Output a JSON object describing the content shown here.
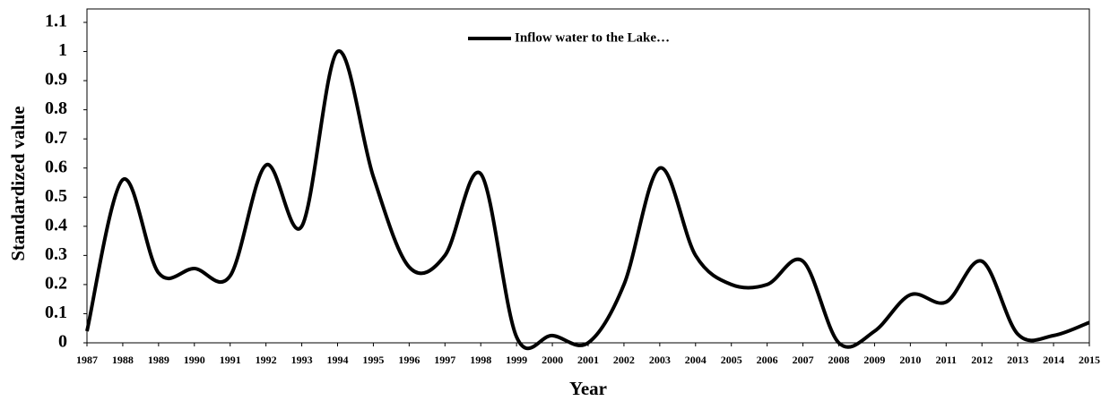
{
  "chart_data": {
    "type": "line",
    "x_label": "Year",
    "y_label": "Standardized value",
    "x": [
      1987,
      1988,
      1989,
      1990,
      1991,
      1992,
      1993,
      1994,
      1995,
      1996,
      1997,
      1998,
      1999,
      2000,
      2001,
      2002,
      2003,
      2004,
      2005,
      2006,
      2007,
      2008,
      2009,
      2010,
      2011,
      2012,
      2013,
      2014,
      2015
    ],
    "series": [
      {
        "name": "Inflow water to the Lake…",
        "color": "#000000",
        "values": [
          0.04,
          0.56,
          0.24,
          0.255,
          0.23,
          0.61,
          0.4,
          1.0,
          0.57,
          0.26,
          0.3,
          0.58,
          0.02,
          0.025,
          0,
          0.2,
          0.6,
          0.3,
          0.2,
          0.2,
          0.28,
          0,
          0.04,
          0.165,
          0.14,
          0.28,
          0.03,
          0.025,
          0.07
        ]
      }
    ],
    "xlim": [
      1987,
      2015
    ],
    "xticks": [
      1987,
      1988,
      1989,
      1990,
      1991,
      1992,
      1993,
      1994,
      1995,
      1996,
      1997,
      1998,
      1999,
      2000,
      2001,
      2002,
      2003,
      2004,
      2005,
      2006,
      2007,
      2008,
      2009,
      2010,
      2011,
      2012,
      2013,
      2014,
      2015
    ],
    "ylim": [
      0,
      1.1
    ],
    "yticks": [
      0,
      0.1,
      0.2,
      0.3,
      0.4,
      0.5,
      0.6,
      0.7,
      0.8,
      0.9,
      1,
      1.1
    ],
    "grid": false,
    "legend": "top"
  }
}
